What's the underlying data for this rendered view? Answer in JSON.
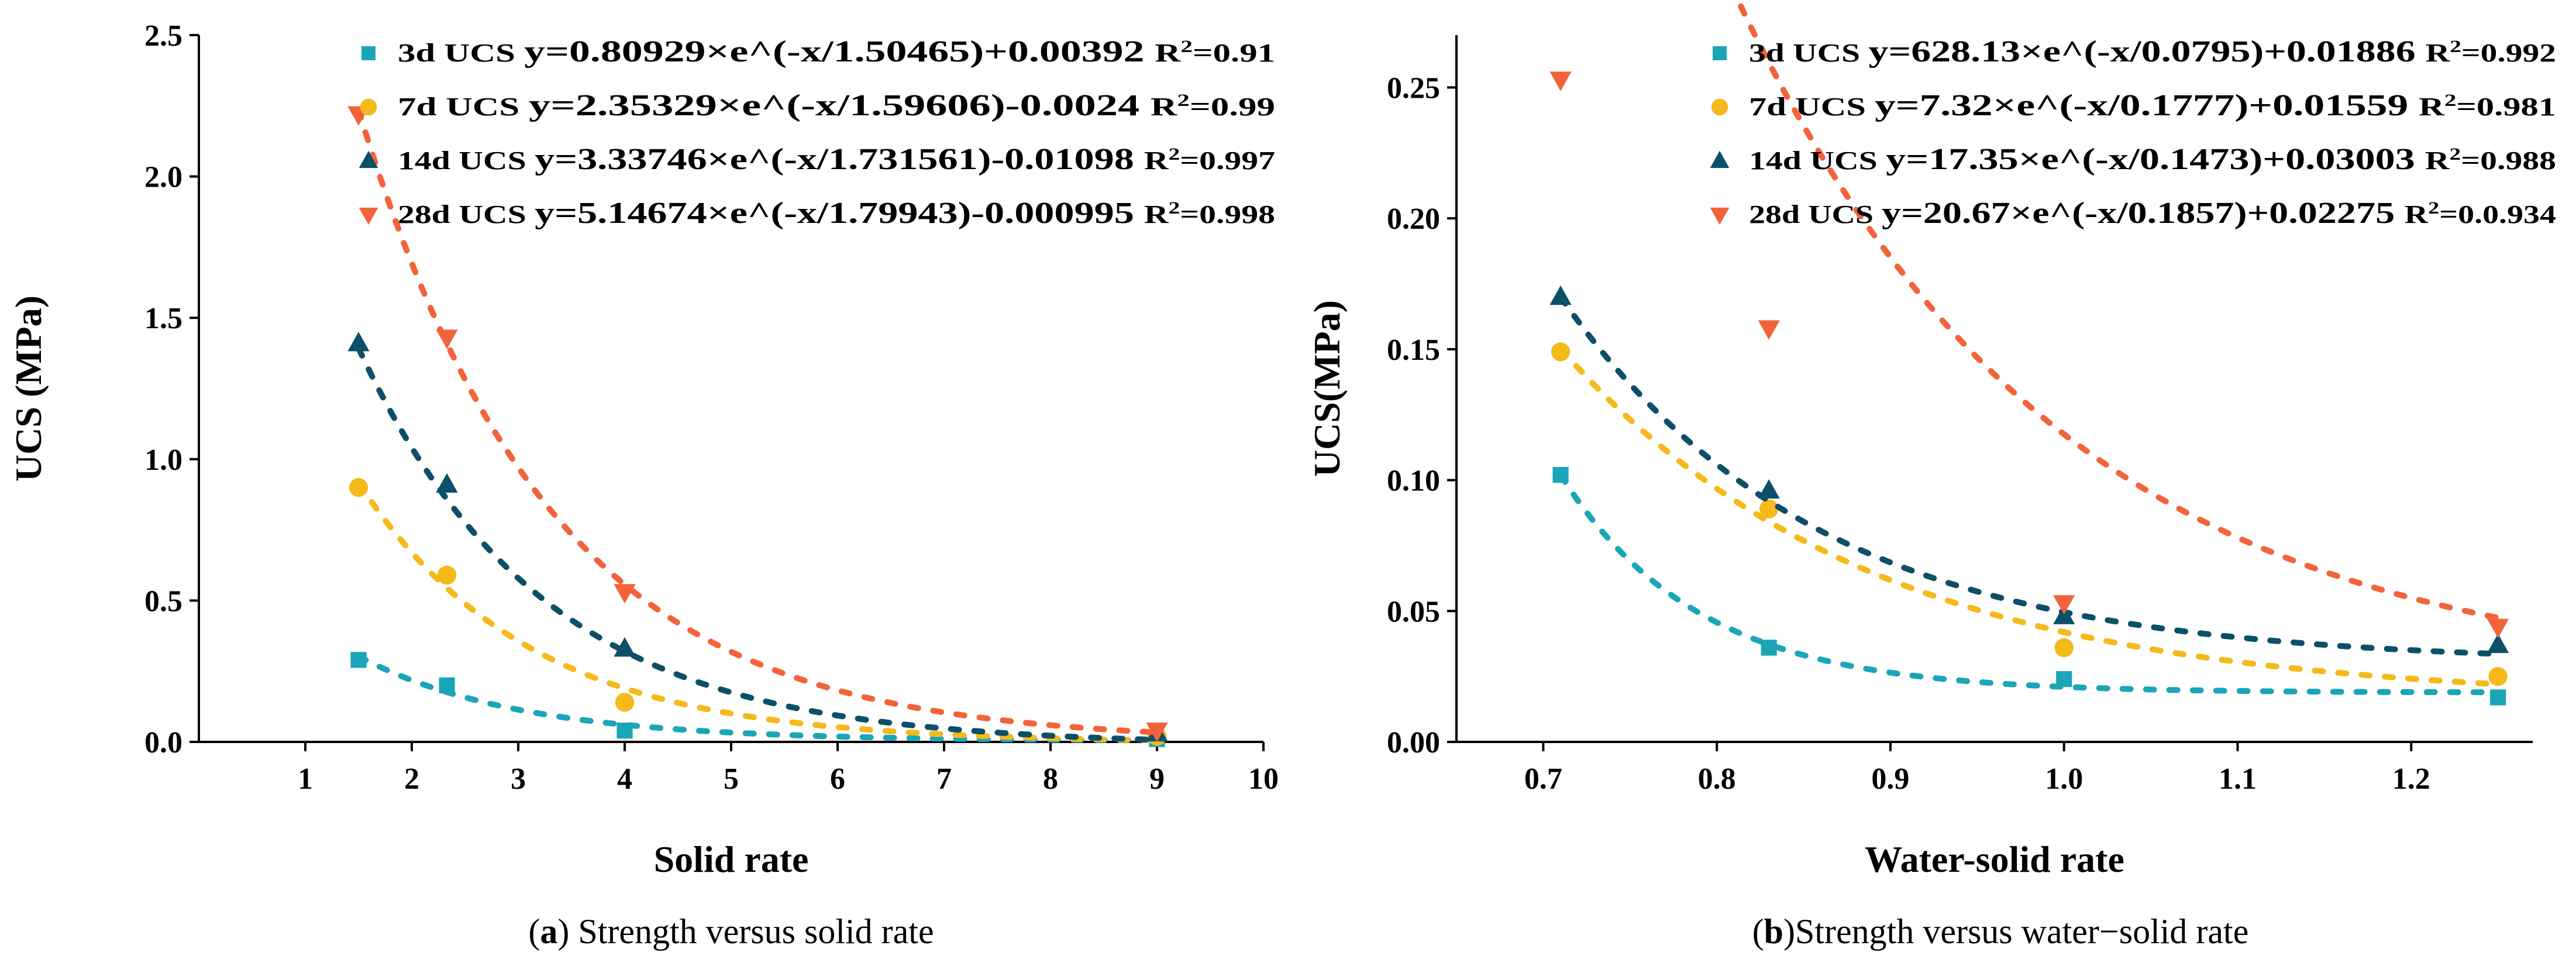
{
  "chart_data": [
    {
      "type": "scatter",
      "caption_letter": "a",
      "caption_text": " Strength versus solid rate",
      "xlabel": "Solid rate",
      "ylabel": "UCS (MPa)",
      "xlim": [
        0,
        10
      ],
      "ylim": [
        0,
        2.5
      ],
      "xticks": [
        1,
        2,
        3,
        4,
        5,
        6,
        7,
        8,
        9,
        10
      ],
      "yticks": [
        0.0,
        0.5,
        1.0,
        1.5,
        2.0,
        2.5
      ],
      "ytick_labels": [
        "0.0",
        "0.5",
        "1.0",
        "1.5",
        "2.0",
        "2.5"
      ],
      "xtick_labels": [
        "1",
        "2",
        "3",
        "4",
        "5",
        "6",
        "7",
        "8",
        "9",
        "10"
      ],
      "legend_position": "top-right",
      "series": [
        {
          "name": "3d UCS",
          "marker": "square",
          "color": "#1aa6b7",
          "x": [
            1.5,
            2.33,
            4.0,
            9.0
          ],
          "y": [
            0.29,
            0.2,
            0.04,
            0.01
          ],
          "fit": {
            "A": 0.80929,
            "t": 1.50465,
            "c": 0.00392,
            "x0": 1.5,
            "x1": 9.0
          },
          "equation": "y=0.80929×e^(-x/1.50465)+0.00392",
          "r2": "=0.91"
        },
        {
          "name": "7d UCS",
          "marker": "circle",
          "color": "#f6b91a",
          "x": [
            1.5,
            2.33,
            4.0,
            9.0
          ],
          "y": [
            0.9,
            0.59,
            0.14,
            0.02
          ],
          "fit": {
            "A": 2.35329,
            "t": 1.59606,
            "c": -0.0024,
            "x0": 1.5,
            "x1": 9.0
          },
          "equation": "y=2.35329×e^(-x/1.59606)-0.0024",
          "r2": "=0.99"
        },
        {
          "name": "14d UCS",
          "marker": "triangle-up",
          "color": "#0c4f68",
          "x": [
            1.5,
            2.33,
            4.0,
            9.0
          ],
          "y": [
            1.41,
            0.91,
            0.33,
            0.03
          ],
          "fit": {
            "A": 3.33746,
            "t": 1.731561,
            "c": -0.01098,
            "x0": 1.5,
            "x1": 9.0
          },
          "equation": "y=3.33746×e^(-x/1.731561)-0.01098",
          "r2": "=0.997"
        },
        {
          "name": "28d UCS",
          "marker": "triangle-down",
          "color": "#f3633a",
          "x": [
            1.5,
            2.33,
            4.0,
            9.0
          ],
          "y": [
            2.22,
            1.43,
            0.53,
            0.04
          ],
          "fit": {
            "A": 5.14674,
            "t": 1.79943,
            "c": -0.000995,
            "x0": 1.5,
            "x1": 9.0
          },
          "equation": "y=5.14674×e^(-x/1.79943)-0.000995",
          "r2": "=0.998"
        }
      ]
    },
    {
      "type": "scatter",
      "caption_letter": "b",
      "caption_text": "Strength versus water−solid rate",
      "xlabel": "Water-solid rate",
      "ylabel": "UCS(MPa)",
      "xlim": [
        0.65,
        1.27
      ],
      "ylim": [
        0,
        0.27
      ],
      "xticks": [
        0.7,
        0.8,
        0.9,
        1.0,
        1.1,
        1.2
      ],
      "xtick_labels": [
        "0.7",
        "0.8",
        "0.9",
        "1.0",
        "1.1",
        "1.2"
      ],
      "yticks": [
        0.0,
        0.05,
        0.1,
        0.15,
        0.2,
        0.25
      ],
      "ytick_labels": [
        "0.00",
        "0.05",
        "0.10",
        "0.15",
        "0.20",
        "0.25"
      ],
      "legend_position": "top-right",
      "series": [
        {
          "name": "3d UCS",
          "marker": "square",
          "color": "#1aa6b7",
          "x": [
            0.71,
            0.83,
            1.0,
            1.25
          ],
          "y": [
            0.102,
            0.036,
            0.024,
            0.017
          ],
          "fit": {
            "A": 628.13,
            "t": 0.0795,
            "c": 0.01886,
            "x0": 0.71,
            "x1": 1.25
          },
          "equation": "y=628.13×e^(-x/0.0795)+0.01886",
          "r2": "=0.992"
        },
        {
          "name": "7d UCS",
          "marker": "circle",
          "color": "#f6b91a",
          "x": [
            0.71,
            0.83,
            1.0,
            1.25
          ],
          "y": [
            0.149,
            0.089,
            0.036,
            0.025
          ],
          "fit": {
            "A": 7.32,
            "t": 0.1777,
            "c": 0.01559,
            "x0": 0.71,
            "x1": 1.25
          },
          "equation": "y=7.32×e^(-x/0.1777)+0.01559",
          "r2": "=0.981"
        },
        {
          "name": "14d UCS",
          "marker": "triangle-up",
          "color": "#0c4f68",
          "x": [
            0.71,
            0.83,
            1.0,
            1.25
          ],
          "y": [
            0.17,
            0.096,
            0.048,
            0.037
          ],
          "fit": {
            "A": 17.35,
            "t": 0.1473,
            "c": 0.03003,
            "x0": 0.71,
            "x1": 1.25
          },
          "equation": "y=17.35×e^(-x/0.1473)+0.03003",
          "r2": "=0.988"
        },
        {
          "name": "28d UCS",
          "marker": "triangle-down",
          "color": "#f3633a",
          "x": [
            0.71,
            0.83,
            1.0,
            1.25
          ],
          "y": [
            0.253,
            0.158,
            0.053,
            0.044
          ],
          "fit": {
            "A": 20.67,
            "t": 0.1857,
            "c": 0.02275,
            "x0": 0.71,
            "x1": 1.25
          },
          "equation": "y=20.67×e^(-x/0.1857)+0.02275",
          "r2": "=0.0.934"
        }
      ]
    }
  ]
}
